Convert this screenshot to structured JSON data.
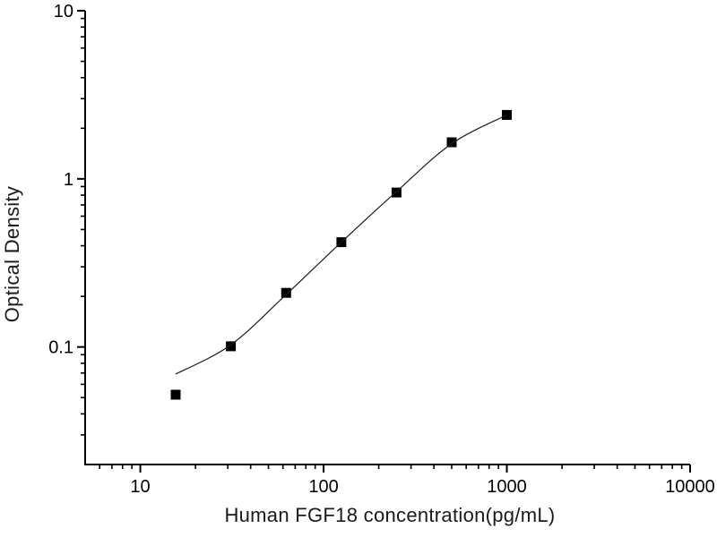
{
  "page": {
    "background_color": "#ffffff",
    "foreground_color": "#000000"
  },
  "chart_data": {
    "type": "scatter",
    "title": "",
    "xlabel": "Human FGF18 concentration(pg/mL)",
    "ylabel": "Optical Density",
    "x_scale": "log",
    "y_scale": "log",
    "xlim": [
      5,
      10000
    ],
    "ylim": [
      0.02,
      10
    ],
    "grid": false,
    "legend": null,
    "x_major_ticks": [
      {
        "value": 10,
        "label": "10"
      },
      {
        "value": 100,
        "label": "100"
      },
      {
        "value": 1000,
        "label": "1000"
      },
      {
        "value": 10000,
        "label": "10000"
      }
    ],
    "y_major_ticks": [
      {
        "value": 0.1,
        "label": "0.1"
      },
      {
        "value": 1,
        "label": "1"
      },
      {
        "value": 10,
        "label": "10"
      }
    ],
    "series": [
      {
        "name": "standard-points",
        "render": "markers",
        "marker": "filled-square",
        "marker_size": 11,
        "color": "#000000",
        "points": [
          {
            "x": 15.6,
            "y": 0.052
          },
          {
            "x": 31.2,
            "y": 0.101
          },
          {
            "x": 62.5,
            "y": 0.21
          },
          {
            "x": 125,
            "y": 0.42
          },
          {
            "x": 250,
            "y": 0.83
          },
          {
            "x": 500,
            "y": 1.65
          },
          {
            "x": 1000,
            "y": 2.4
          }
        ]
      },
      {
        "name": "fitted-curve",
        "render": "line",
        "line_width": 1.2,
        "color": "#1c1c1c",
        "points": [
          {
            "x": 15.6,
            "y": 0.069
          },
          {
            "x": 31.2,
            "y": 0.103
          },
          {
            "x": 62.5,
            "y": 0.205
          },
          {
            "x": 125,
            "y": 0.42
          },
          {
            "x": 250,
            "y": 0.84
          },
          {
            "x": 500,
            "y": 1.62
          },
          {
            "x": 1000,
            "y": 2.4
          }
        ]
      }
    ]
  }
}
